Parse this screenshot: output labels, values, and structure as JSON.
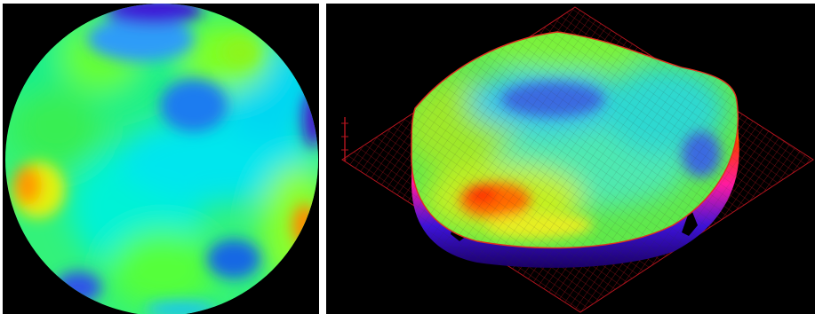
{
  "colors": {
    "background": "#000000",
    "separator": "#ffffff",
    "mesh": "#b4141e",
    "surface_low": "#3a00d8",
    "surface_mid": "#00ffe6",
    "surface_high": "#ff6a00"
  },
  "panels": {
    "left": {
      "content": "2d-false-color-circular-map"
    },
    "right": {
      "content": "3d-wireframe-surface-plot"
    }
  }
}
